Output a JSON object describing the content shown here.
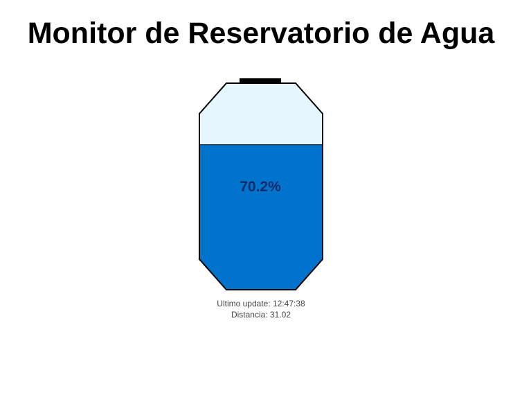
{
  "page": {
    "title": "Monitor de Reservatorio de Agua"
  },
  "tank": {
    "level_percent": 70.2,
    "level_text": "70.2%",
    "colors": {
      "water": "#0074CC",
      "air": "#E6F6FE",
      "outline": "#000000",
      "label": "#0A2A6A"
    }
  },
  "status": {
    "last_update_label": "Ultimo update: 12:47:38",
    "distance_label": "Distancia: 31.02"
  }
}
